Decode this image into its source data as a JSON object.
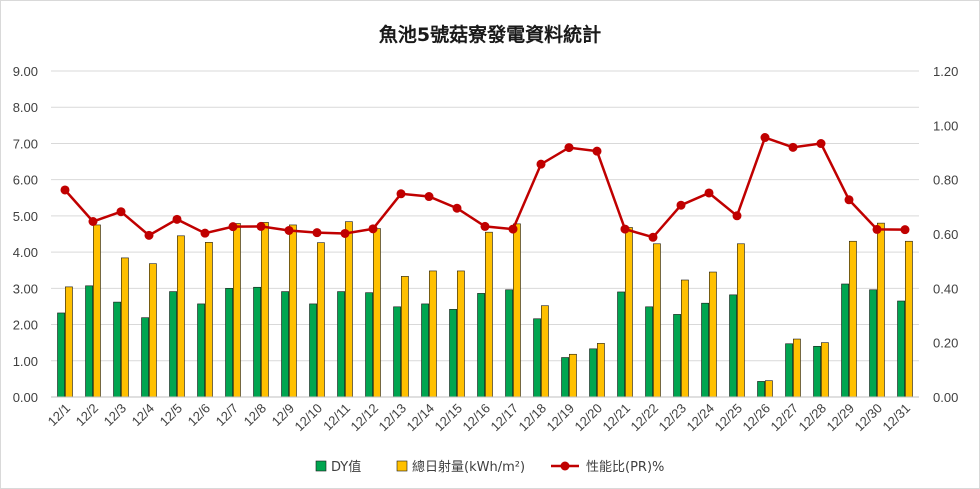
{
  "chart_data": {
    "type": "bar",
    "title": "魚池5號菇寮發電資料統計",
    "categories": [
      "12/1",
      "12/2",
      "12/3",
      "12/4",
      "12/5",
      "12/6",
      "12/7",
      "12/8",
      "12/9",
      "12/10",
      "12/11",
      "12/12",
      "12/13",
      "12/14",
      "12/15",
      "12/16",
      "12/17",
      "12/18",
      "12/19",
      "12/20",
      "12/21",
      "12/22",
      "12/23",
      "12/24",
      "12/25",
      "12/26",
      "12/27",
      "12/28",
      "12/29",
      "12/30",
      "12/31"
    ],
    "y_left": {
      "lim": [
        0,
        9
      ],
      "ticks": [
        "0.00",
        "1.00",
        "2.00",
        "3.00",
        "4.00",
        "5.00",
        "6.00",
        "7.00",
        "8.00",
        "9.00"
      ]
    },
    "y_right": {
      "lim": [
        0,
        1.2
      ],
      "ticks": [
        "0.00",
        "0.20",
        "0.40",
        "0.60",
        "0.80",
        "1.00",
        "1.20"
      ]
    },
    "grid": true,
    "legend_position": "bottom",
    "series": [
      {
        "name": "DY值",
        "type": "bar",
        "axis": "left",
        "color": "#00a550",
        "values": [
          2.32,
          3.07,
          2.62,
          2.19,
          2.91,
          2.57,
          3.0,
          3.03,
          2.91,
          2.57,
          2.91,
          2.88,
          2.49,
          2.57,
          2.42,
          2.86,
          2.96,
          2.16,
          1.09,
          1.33,
          2.9,
          2.49,
          2.28,
          2.59,
          2.82,
          0.43,
          1.47,
          1.4,
          3.12,
          2.96,
          2.65
        ]
      },
      {
        "name": "總日射量(kWh/m²)",
        "type": "bar",
        "axis": "left",
        "color": "#ffc000",
        "values": [
          3.04,
          4.75,
          3.84,
          3.68,
          4.45,
          4.27,
          4.79,
          4.82,
          4.75,
          4.26,
          4.84,
          4.65,
          3.33,
          3.48,
          3.48,
          4.55,
          4.78,
          2.52,
          1.18,
          1.48,
          4.68,
          4.23,
          3.23,
          3.45,
          4.23,
          0.45,
          1.6,
          1.5,
          4.3,
          4.8,
          4.3
        ]
      },
      {
        "name": "性能比(PR)%",
        "type": "line",
        "axis": "right",
        "color": "#c00000",
        "values": [
          0.762,
          0.646,
          0.682,
          0.595,
          0.654,
          0.603,
          0.627,
          0.628,
          0.613,
          0.605,
          0.602,
          0.619,
          0.748,
          0.738,
          0.695,
          0.628,
          0.618,
          0.857,
          0.918,
          0.905,
          0.618,
          0.588,
          0.706,
          0.751,
          0.667,
          0.955,
          0.919,
          0.933,
          0.726,
          0.617,
          0.616
        ]
      }
    ]
  }
}
